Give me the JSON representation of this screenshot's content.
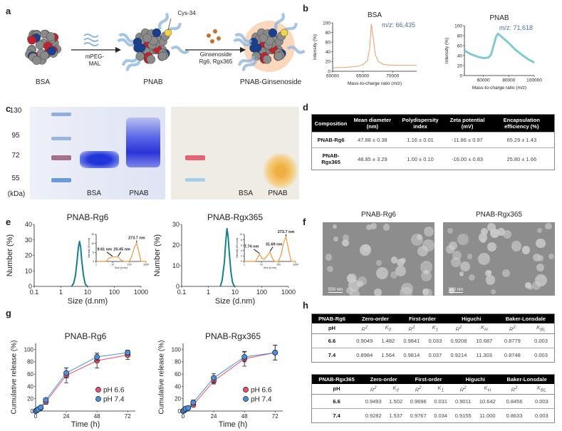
{
  "panels": {
    "a": "a",
    "b": "b",
    "c": "c",
    "d": "d",
    "e": "e",
    "f": "f",
    "g": "g",
    "h": "h"
  },
  "schematic": {
    "bsa": "BSA",
    "pnab": "PNAB",
    "pnab_ginsenoside": "PNAB-Ginsenoside",
    "reagent1_line1": "mPEG-",
    "reagent1_line2": "MAL",
    "reagent2_line1": "Ginsenoside",
    "reagent2_line2": "Rg6, Rgx365",
    "cys": "Cys-34"
  },
  "gel": {
    "markers": [
      "130",
      "95",
      "72",
      "55"
    ],
    "unit": "(kDa)",
    "lanes_left": [
      "BSA",
      "PNAB"
    ],
    "lanes_right": [
      "BSA",
      "PNAB"
    ]
  },
  "table_d": {
    "headers": [
      "Composition",
      "Mean diameter (nm)",
      "Polydispersity index",
      "Zeta potential (mV)",
      "Encapsulation efficiency (%)"
    ],
    "rows": [
      [
        "PNAB-Rg6",
        "47.88 ± 0.38",
        "1.16 ± 0.01",
        "-11.86 ± 0.97",
        "65.29 ± 1.43"
      ],
      [
        "PNAB-Rgx365",
        "48.85 ± 3.29",
        "1.00 ± 0.10",
        "-16.00 ± 0.83",
        "25.80 ± 1.66"
      ]
    ]
  },
  "tem": {
    "titles": [
      "PNAB-Rg6",
      "PNAB-Rgx365"
    ],
    "scale_bar": "500 nm"
  },
  "tables_h": [
    {
      "title": "PNAB-Rg6",
      "groups": [
        "Zero-order",
        "First-order",
        "Higuchi",
        "Baker-Lonsdale"
      ],
      "ph_label": "pH",
      "sub": [
        [
          "R",
          "2",
          ""
        ],
        [
          "K",
          "",
          "0"
        ],
        [
          "R",
          "2",
          ""
        ],
        [
          "K",
          "",
          "1"
        ],
        [
          "R",
          "2",
          ""
        ],
        [
          "K",
          "",
          "H"
        ],
        [
          "R",
          "2",
          ""
        ],
        [
          "K",
          "",
          "BL"
        ]
      ],
      "rows": [
        [
          "6.6",
          "0.9049",
          "1.482",
          "0.9841",
          "0.033",
          "0.9208",
          "10.687",
          "0.8779",
          "0.003"
        ],
        [
          "7.4",
          "0.8984",
          "1.564",
          "0.9814",
          "0.037",
          "0.9214",
          "11.303",
          "0.8748",
          "0.003"
        ]
      ]
    },
    {
      "title": "PNAB-Rgx365",
      "groups": [
        "Zero-order",
        "First-order",
        "Higuchi",
        "Baker-Lonsdale"
      ],
      "ph_label": "pH",
      "sub": [
        [
          "R",
          "2",
          ""
        ],
        [
          "K",
          "",
          "0"
        ],
        [
          "R",
          "2",
          ""
        ],
        [
          "K",
          "",
          "1"
        ],
        [
          "R",
          "2",
          ""
        ],
        [
          "K",
          "",
          "H"
        ],
        [
          "R",
          "2",
          ""
        ],
        [
          "K",
          "",
          "BL"
        ]
      ],
      "rows": [
        [
          "6.6",
          "0.9493",
          "1.502",
          "0.9696",
          "0.031",
          "0.9011",
          "10.642",
          "0.8456",
          "0.003"
        ],
        [
          "7.4",
          "0.9282",
          "1.537",
          "0.9767",
          "0.034",
          "0.9155",
          "11.000",
          "0.8633",
          "0.003"
        ]
      ]
    }
  ],
  "colors": {
    "bsa_ms": "#f08a4b",
    "pnab_ms": "#6cc0c9",
    "dls": "#14808c",
    "inset": "#f0963c",
    "ph66": "#e8506e",
    "ph74": "#4a90e2",
    "mz_text": "#4a6fa8"
  },
  "chart_data": [
    {
      "id": "b1",
      "type": "line",
      "title": "BSA",
      "xlabel": "Mass-to-charge ratio (m/z)",
      "ylabel": "Intensity (%)",
      "xlim": [
        60000,
        74000
      ],
      "ylim": [
        0,
        100
      ],
      "xticks": [
        60000,
        65000,
        70000
      ],
      "yticks": [
        0,
        20,
        40,
        60,
        80,
        100
      ],
      "annotation": "m/z: 66,435",
      "x": [
        60000,
        62000,
        64000,
        65000,
        65800,
        66200,
        66435,
        66700,
        67100,
        67600,
        68500,
        70000,
        72000,
        74000
      ],
      "y": [
        7,
        8,
        10,
        13,
        22,
        50,
        97,
        75,
        35,
        20,
        14,
        12,
        12,
        12
      ]
    },
    {
      "id": "b2",
      "type": "line",
      "title": "PNAB",
      "xlabel": "Mass-to-charge ratio (m/z)",
      "ylabel": "Intensity (%)",
      "xlim": [
        45000,
        100000
      ],
      "ylim": [
        0,
        100
      ],
      "xticks": [
        60000,
        80000,
        100000
      ],
      "yticks": [
        0,
        20,
        40,
        60,
        80,
        100
      ],
      "annotation": "m/z: 71,618",
      "x": [
        45000,
        50000,
        55000,
        60000,
        64000,
        66000,
        68000,
        70000,
        71618,
        75000,
        80000,
        85000,
        90000,
        95000,
        100000
      ],
      "y": [
        50,
        43,
        38,
        35,
        36,
        42,
        60,
        78,
        84,
        76,
        65,
        52,
        42,
        33,
        26
      ]
    },
    {
      "id": "e1",
      "type": "line",
      "title": "PNAB-Rg6",
      "xlabel": "Size (d.nm)",
      "ylabel": "Number (%)",
      "xscale": "log",
      "xlim": [
        0.1,
        1000
      ],
      "ylim": [
        0,
        40
      ],
      "xticks": [
        0.1,
        1,
        10,
        100,
        1000
      ],
      "xtick_labels": [
        "0.1",
        "1",
        "10",
        "100",
        "1000"
      ],
      "yticks": [
        0,
        10,
        20,
        30,
        40
      ],
      "x": [
        2.5,
        3,
        3.5,
        4,
        4.5,
        5,
        5.5,
        6,
        7,
        8,
        9,
        10
      ],
      "y": [
        0,
        2,
        7,
        16,
        25,
        29,
        25,
        17,
        7,
        2,
        0.5,
        0
      ],
      "inset": {
        "xlabel": "Size (d.nm)",
        "ylabel": "Intensity (Percent)",
        "xlim": [
          1,
          1000
        ],
        "ylim": [
          0,
          15
        ],
        "xticks": [
          1,
          10,
          100,
          1000
        ],
        "yticks": [
          0,
          5,
          10,
          15
        ],
        "x": [
          1,
          4,
          6,
          9.61,
          20.45,
          30,
          45,
          100,
          140,
          200,
          273.7,
          380,
          500,
          1000
        ],
        "y": [
          0,
          0,
          2,
          2.5,
          2.5,
          1,
          0,
          0,
          3,
          8,
          10,
          5,
          0,
          0
        ],
        "annotations": [
          {
            "x": 9.61,
            "y": 2.5,
            "label": "9.61 nm"
          },
          {
            "x": 20.45,
            "y": 2.5,
            "label": "20.45 nm"
          },
          {
            "x": 273.7,
            "y": 10,
            "label": "273.7 nm"
          }
        ]
      }
    },
    {
      "id": "e2",
      "type": "line",
      "title": "PNAB-Rgx365",
      "xlabel": "Size (d.nm)",
      "ylabel": "Number (%)",
      "xscale": "log",
      "xlim": [
        0.1,
        1000
      ],
      "ylim": [
        0,
        30
      ],
      "xticks": [
        0.1,
        1,
        10,
        100,
        1000
      ],
      "xtick_labels": [
        "0.1",
        "1",
        "10",
        "100",
        "1000"
      ],
      "yticks": [
        0,
        10,
        20,
        30
      ],
      "x": [
        2.8,
        3.3,
        4,
        4.5,
        5,
        5.5,
        6,
        7,
        8,
        9,
        10
      ],
      "y": [
        0,
        3,
        12,
        22,
        28,
        24,
        17,
        7,
        2,
        0.5,
        0
      ],
      "inset": {
        "xlabel": "Size (d.nm)",
        "ylabel": "Intensity (Percent)",
        "xlim": [
          1,
          1000
        ],
        "ylim": [
          0,
          10
        ],
        "xticks": [
          1,
          10,
          100,
          1000
        ],
        "yticks": [
          0,
          2,
          4,
          6,
          8,
          10
        ],
        "x": [
          1,
          4.5,
          7.74,
          11,
          15,
          20,
          31.69,
          45,
          60,
          100,
          150,
          200,
          273.7,
          400,
          550,
          1000
        ],
        "y": [
          0,
          0,
          2.7,
          1,
          0.9,
          1.8,
          3.5,
          1,
          0,
          0,
          3,
          7,
          9,
          4,
          0,
          0
        ],
        "annotations": [
          {
            "x": 7.74,
            "y": 2.7,
            "label": "7.74 nm"
          },
          {
            "x": 31.69,
            "y": 3.5,
            "label": "31.69 nm"
          },
          {
            "x": 273.7,
            "y": 9,
            "label": "273.7 nm"
          }
        ]
      }
    },
    {
      "id": "g1",
      "type": "line",
      "title": "PNAB-Rg6",
      "xlabel": "Time (h)",
      "ylabel": "Cumulative release (%)",
      "xlim": [
        0,
        78
      ],
      "ylim": [
        0,
        110
      ],
      "xticks": [
        0,
        24,
        48,
        72
      ],
      "yticks": [
        0,
        20,
        40,
        60,
        80,
        100
      ],
      "legend": "bottom-right",
      "x": [
        0,
        1,
        2,
        4,
        8,
        24,
        48,
        72
      ],
      "series": [
        {
          "name": "pH 6.6",
          "values": [
            0,
            1,
            3,
            5,
            15,
            58,
            82,
            91
          ],
          "errors": [
            0,
            0.5,
            1,
            1,
            4,
            12,
            12,
            7
          ]
        },
        {
          "name": "pH 7.4",
          "values": [
            0,
            1,
            3,
            6,
            18,
            62,
            88,
            95
          ],
          "errors": [
            0,
            0.5,
            1,
            1,
            3,
            8,
            6,
            4
          ]
        }
      ]
    },
    {
      "id": "g2",
      "type": "line",
      "title": "PNAB-Rgx365",
      "xlabel": "Time (h)",
      "ylabel": "Cumulative release (%)",
      "xlim": [
        0,
        78
      ],
      "ylim": [
        0,
        110
      ],
      "xticks": [
        0,
        24,
        48,
        72
      ],
      "yticks": [
        0,
        20,
        40,
        60,
        80,
        100
      ],
      "legend": "bottom-right",
      "x": [
        0,
        1,
        2,
        4,
        8,
        24,
        48,
        72
      ],
      "series": [
        {
          "name": "pH 6.6",
          "values": [
            0,
            1,
            3,
            5,
            10,
            49,
            85,
            95
          ],
          "errors": [
            0,
            0.5,
            1,
            1,
            3,
            5,
            12,
            12
          ]
        },
        {
          "name": "pH 7.4",
          "values": [
            0,
            2,
            4,
            5,
            14,
            54,
            88,
            95
          ],
          "errors": [
            0,
            0.5,
            1,
            1,
            4,
            7,
            8,
            12
          ]
        }
      ]
    }
  ]
}
